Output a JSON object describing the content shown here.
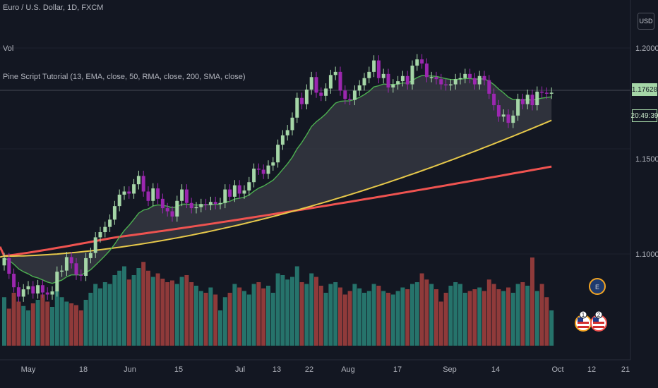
{
  "header": {
    "symbol_line": "Euro / U.S. Dollar, 1D, FXCM",
    "vol_label": "Vol",
    "indicator_line": "Pine Script Tutorial (13, EMA, close, 50, RMA, close, 200, SMA, close)"
  },
  "price_scale": {
    "currency": "USD",
    "ticks": [
      "1.20000",
      "1.15000",
      "1.10000"
    ],
    "last_price": "1.17628",
    "countdown": "20:49:39"
  },
  "time_axis": {
    "labels": [
      "May",
      "18",
      "Jun",
      "15",
      "Jul",
      "13",
      "22",
      "Aug",
      "17",
      "Sep",
      "14",
      "Oct",
      "12",
      "21"
    ]
  },
  "colors": {
    "background": "#131722",
    "bull": "#a5d6a7",
    "bear": "#9c27b0",
    "ema_fast": "#4caf50",
    "ma_mid": "#e6c84a",
    "ma_slow": "#ef5350",
    "vol_bull": "#26736b",
    "vol_bear": "#8f3a3a",
    "fill": "#3a3c45"
  },
  "events": [
    {
      "name": "earnings-event-icon",
      "glyph": "E"
    },
    {
      "name": "us-flag-event-icon",
      "glyph": "1"
    },
    {
      "name": "us-flag-event-icon-2",
      "glyph": "2"
    }
  ],
  "chart_data": {
    "type": "candlestick",
    "ylim": [
      1.075,
      1.205
    ],
    "x": [
      "2020-05-01",
      "2020-05-04",
      "2020-05-05",
      "2020-05-06",
      "2020-05-07",
      "2020-05-08",
      "2020-05-11",
      "2020-05-12",
      "2020-05-13",
      "2020-05-14",
      "2020-05-15",
      "2020-05-18",
      "2020-05-19",
      "2020-05-20",
      "2020-05-21",
      "2020-05-22",
      "2020-05-25",
      "2020-05-26",
      "2020-05-27",
      "2020-05-28",
      "2020-05-29",
      "2020-06-01",
      "2020-06-02",
      "2020-06-03",
      "2020-06-04",
      "2020-06-05",
      "2020-06-08",
      "2020-06-09",
      "2020-06-10",
      "2020-06-11",
      "2020-06-12",
      "2020-06-15",
      "2020-06-16",
      "2020-06-17",
      "2020-06-18",
      "2020-06-19",
      "2020-06-22",
      "2020-06-23",
      "2020-06-24",
      "2020-06-25",
      "2020-06-26",
      "2020-06-29",
      "2020-06-30",
      "2020-07-01",
      "2020-07-02",
      "2020-07-03",
      "2020-07-06",
      "2020-07-07",
      "2020-07-08",
      "2020-07-09",
      "2020-07-10",
      "2020-07-13",
      "2020-07-14",
      "2020-07-15",
      "2020-07-16",
      "2020-07-17",
      "2020-07-20",
      "2020-07-21",
      "2020-07-22",
      "2020-07-23",
      "2020-07-24",
      "2020-07-27",
      "2020-07-28",
      "2020-07-29",
      "2020-07-30",
      "2020-07-31",
      "2020-08-03",
      "2020-08-04",
      "2020-08-05",
      "2020-08-06",
      "2020-08-07",
      "2020-08-10",
      "2020-08-11",
      "2020-08-12",
      "2020-08-13",
      "2020-08-14",
      "2020-08-17",
      "2020-08-18",
      "2020-08-19",
      "2020-08-20",
      "2020-08-21",
      "2020-08-24",
      "2020-08-25",
      "2020-08-26",
      "2020-08-27",
      "2020-08-28",
      "2020-08-31",
      "2020-09-01",
      "2020-09-02",
      "2020-09-03",
      "2020-09-04",
      "2020-09-07",
      "2020-09-08",
      "2020-09-09",
      "2020-09-10",
      "2020-09-11",
      "2020-09-14",
      "2020-09-15",
      "2020-09-16",
      "2020-09-17",
      "2020-09-18",
      "2020-09-21",
      "2020-09-22",
      "2020-09-23",
      "2020-09-24",
      "2020-09-25",
      "2020-09-28",
      "2020-09-29",
      "2020-09-30",
      "2020-10-01",
      "2020-10-02",
      "2020-10-05",
      "2020-10-06",
      "2020-10-07",
      "2020-10-08"
    ],
    "close": [
      1.098,
      1.0905,
      1.084,
      1.0795,
      1.083,
      1.0845,
      1.081,
      1.085,
      1.0815,
      1.0805,
      1.082,
      1.0915,
      1.092,
      1.0985,
      1.0955,
      1.09,
      1.0895,
      1.098,
      1.1005,
      1.108,
      1.1105,
      1.113,
      1.1165,
      1.123,
      1.1285,
      1.13,
      1.129,
      1.1335,
      1.1375,
      1.13,
      1.1255,
      1.1315,
      1.1265,
      1.122,
      1.1205,
      1.118,
      1.1255,
      1.131,
      1.1245,
      1.122,
      1.1225,
      1.124,
      1.1235,
      1.125,
      1.124,
      1.1245,
      1.131,
      1.1275,
      1.133,
      1.129,
      1.1305,
      1.1345,
      1.141,
      1.1405,
      1.1385,
      1.1425,
      1.144,
      1.1525,
      1.157,
      1.1595,
      1.1655,
      1.175,
      1.172,
      1.179,
      1.185,
      1.1775,
      1.176,
      1.1795,
      1.186,
      1.1875,
      1.1785,
      1.1745,
      1.174,
      1.1785,
      1.181,
      1.1845,
      1.1875,
      1.193,
      1.1845,
      1.1865,
      1.18,
      1.1815,
      1.183,
      1.1855,
      1.1815,
      1.1905,
      1.1935,
      1.1915,
      1.185,
      1.185,
      1.184,
      1.1815,
      1.181,
      1.1815,
      1.184,
      1.1845,
      1.1865,
      1.1845,
      1.1815,
      1.1855,
      1.1835,
      1.177,
      1.1715,
      1.166,
      1.167,
      1.163,
      1.1665,
      1.1745,
      1.172,
      1.1765,
      1.1715,
      1.178,
      1.1775,
      1.177,
      1.1775
    ],
    "open": [
      1.0945,
      1.098,
      1.0905,
      1.084,
      1.0795,
      1.083,
      1.0845,
      1.081,
      1.085,
      1.0815,
      1.0805,
      1.082,
      1.0915,
      1.092,
      1.0985,
      1.0955,
      1.09,
      1.0895,
      1.098,
      1.1005,
      1.108,
      1.1105,
      1.113,
      1.1165,
      1.123,
      1.1285,
      1.13,
      1.129,
      1.1335,
      1.1375,
      1.13,
      1.1255,
      1.1315,
      1.1265,
      1.122,
      1.1205,
      1.118,
      1.1255,
      1.131,
      1.1245,
      1.122,
      1.1225,
      1.124,
      1.1235,
      1.125,
      1.124,
      1.1245,
      1.131,
      1.1275,
      1.133,
      1.129,
      1.1305,
      1.1345,
      1.141,
      1.1405,
      1.1385,
      1.1425,
      1.144,
      1.1525,
      1.157,
      1.1595,
      1.1655,
      1.175,
      1.172,
      1.179,
      1.185,
      1.1775,
      1.176,
      1.1795,
      1.186,
      1.1875,
      1.1785,
      1.1745,
      1.174,
      1.1785,
      1.181,
      1.1845,
      1.1875,
      1.193,
      1.1845,
      1.1865,
      1.18,
      1.1815,
      1.183,
      1.1855,
      1.1815,
      1.1905,
      1.1935,
      1.1915,
      1.185,
      1.185,
      1.184,
      1.1815,
      1.181,
      1.1815,
      1.184,
      1.1845,
      1.1865,
      1.1845,
      1.1815,
      1.1855,
      1.1835,
      1.177,
      1.1715,
      1.166,
      1.167,
      1.163,
      1.1665,
      1.1745,
      1.172,
      1.1765,
      1.1715,
      1.178,
      1.1775,
      1.177
    ],
    "volume": [
      0.55,
      0.42,
      0.6,
      0.5,
      0.45,
      0.4,
      0.48,
      0.52,
      0.58,
      0.5,
      0.44,
      0.62,
      0.55,
      0.5,
      0.48,
      0.46,
      0.4,
      0.52,
      0.6,
      0.7,
      0.65,
      0.72,
      0.7,
      0.8,
      0.85,
      0.9,
      0.75,
      0.8,
      0.88,
      0.95,
      0.85,
      0.78,
      0.82,
      0.76,
      0.72,
      0.74,
      0.7,
      0.78,
      0.8,
      0.72,
      0.68,
      0.62,
      0.6,
      0.66,
      0.58,
      0.4,
      0.55,
      0.6,
      0.7,
      0.66,
      0.62,
      0.58,
      0.7,
      0.72,
      0.65,
      0.68,
      0.6,
      0.82,
      0.8,
      0.75,
      0.78,
      0.9,
      0.72,
      0.7,
      0.82,
      0.78,
      0.68,
      0.6,
      0.7,
      0.72,
      0.66,
      0.58,
      0.62,
      0.7,
      0.65,
      0.6,
      0.62,
      0.7,
      0.68,
      0.62,
      0.6,
      0.58,
      0.62,
      0.66,
      0.64,
      0.7,
      0.72,
      0.82,
      0.75,
      0.7,
      0.64,
      0.5,
      0.6,
      0.68,
      0.72,
      0.7,
      0.6,
      0.62,
      0.64,
      0.66,
      0.62,
      0.75,
      0.7,
      0.64,
      0.62,
      0.66,
      0.6,
      0.7,
      0.72,
      0.68,
      1.0,
      0.62,
      0.7,
      0.55,
      0.4
    ],
    "series": [
      {
        "values_from": "ema13"
      },
      {
        "values_from": "rma50"
      },
      {
        "values_from": "sma200"
      }
    ]
  }
}
